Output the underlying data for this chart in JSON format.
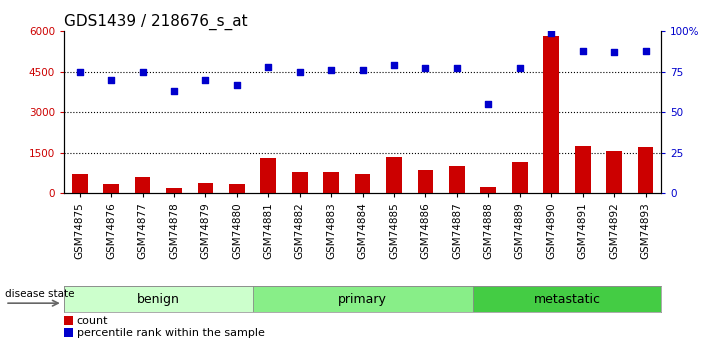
{
  "title": "GDS1439 / 218676_s_at",
  "samples": [
    "GSM74875",
    "GSM74876",
    "GSM74877",
    "GSM74878",
    "GSM74879",
    "GSM74880",
    "GSM74881",
    "GSM74882",
    "GSM74883",
    "GSM74884",
    "GSM74885",
    "GSM74886",
    "GSM74887",
    "GSM74888",
    "GSM74889",
    "GSM74890",
    "GSM74891",
    "GSM74892",
    "GSM74893"
  ],
  "count_values": [
    700,
    350,
    600,
    180,
    380,
    330,
    1300,
    800,
    780,
    720,
    1350,
    850,
    1000,
    220,
    1150,
    5800,
    1750,
    1550,
    1700
  ],
  "percentile_values": [
    75,
    70,
    75,
    63,
    70,
    67,
    78,
    75,
    76,
    76,
    79,
    77,
    77,
    55,
    77,
    99,
    88,
    87,
    88
  ],
  "group_boundaries": [
    {
      "label": "benign",
      "start": 0,
      "end": 5
    },
    {
      "label": "primary",
      "start": 6,
      "end": 12
    },
    {
      "label": "metastatic",
      "start": 13,
      "end": 18
    }
  ],
  "group_colors": [
    "#ccffcc",
    "#88ee88",
    "#44cc44"
  ],
  "bar_color": "#cc0000",
  "dot_color": "#0000cc",
  "ylim_left": [
    0,
    6000
  ],
  "ylim_right": [
    0,
    100
  ],
  "yticks_left": [
    0,
    1500,
    3000,
    4500,
    6000
  ],
  "ytick_labels_left": [
    "0",
    "1500",
    "3000",
    "4500",
    "6000"
  ],
  "yticks_right": [
    0,
    25,
    50,
    75,
    100
  ],
  "ytick_labels_right": [
    "0",
    "25",
    "50",
    "75",
    "100%"
  ],
  "gridline_color": "#000000",
  "title_fontsize": 11,
  "tick_fontsize": 7.5,
  "group_label_fontsize": 9,
  "legend_count_label": "count",
  "legend_pct_label": "percentile rank within the sample",
  "disease_state_label": "disease state",
  "background_color": "#ffffff",
  "separator_color": "#888888",
  "xlim": [
    -0.5,
    18.5
  ]
}
